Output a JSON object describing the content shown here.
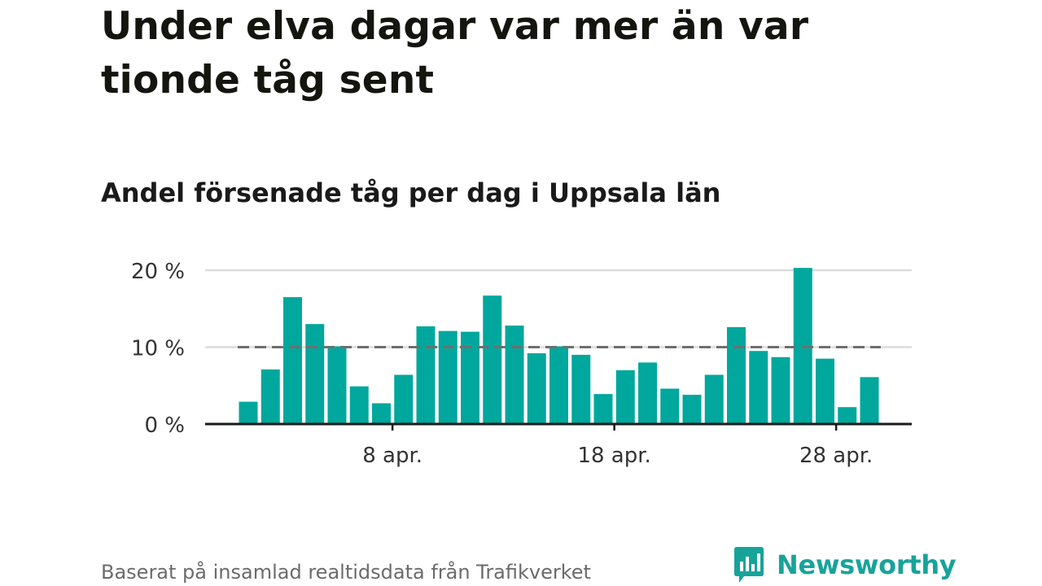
{
  "title": "Under elva dagar var mer än var tionde tåg sent",
  "subtitle": "Andel försenade tåg per dag i Uppsala län",
  "footer": {
    "source": "Baserat på insamlad realtidsdata från Trafikverket",
    "brand": "Newsworthy"
  },
  "colors": {
    "bar": "#00a79d",
    "reference_line": "#6f6f6f",
    "gridline": "#dcdcdc",
    "axis": "#1a1a1a",
    "brand": "#18a39a"
  },
  "chart_data": {
    "type": "bar",
    "unit": "%",
    "x": [
      "1 apr.",
      "2 apr.",
      "3 apr.",
      "4 apr.",
      "5 apr.",
      "6 apr.",
      "7 apr.",
      "8 apr.",
      "9 apr.",
      "10 apr.",
      "11 apr.",
      "12 apr.",
      "13 apr.",
      "14 apr.",
      "15 apr.",
      "16 apr.",
      "17 apr.",
      "18 apr.",
      "19 apr.",
      "20 apr.",
      "21 apr.",
      "22 apr.",
      "23 apr.",
      "24 apr.",
      "25 apr.",
      "26 apr.",
      "27 apr.",
      "28 apr.",
      "29 apr."
    ],
    "values": [
      2.9,
      7.1,
      16.5,
      13.0,
      10.1,
      4.9,
      2.7,
      6.4,
      12.7,
      12.1,
      12.0,
      16.7,
      12.8,
      9.2,
      10.1,
      9.0,
      3.9,
      7.0,
      8.0,
      4.6,
      3.8,
      6.4,
      12.6,
      9.5,
      8.7,
      20.3,
      8.5,
      2.2,
      6.1
    ],
    "xticks": [
      "8 apr.",
      "18 apr.",
      "28 apr."
    ],
    "yticks": [
      0,
      10,
      20
    ],
    "ytick_labels": [
      "0 %",
      "10 %",
      "20 %"
    ],
    "ylim": [
      0,
      20.5
    ],
    "reference_line": 10,
    "grid": "horizontal",
    "legend": "none"
  }
}
